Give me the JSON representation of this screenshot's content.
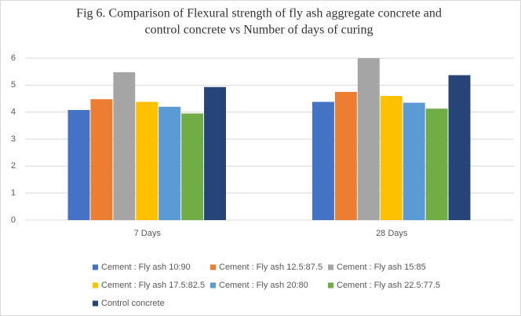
{
  "chart_data": {
    "type": "bar",
    "title": [
      "Fig 6. Comparison of Flexural strength of fly ash aggregate concrete and",
      "control concrete vs Number of days of curing"
    ],
    "categories": [
      "7 Days",
      "28 Days"
    ],
    "series": [
      {
        "name": "Cement : Fly ash 10:90",
        "color": "#4472c4",
        "values": [
          4.08,
          4.38
        ]
      },
      {
        "name": "Cement : Fly ash 12.5:87.5",
        "color": "#ed7d31",
        "values": [
          4.48,
          4.75
        ]
      },
      {
        "name": "Cement : Fly ash 15:85",
        "color": "#a5a5a5",
        "values": [
          5.48,
          6.0
        ]
      },
      {
        "name": "Cement : Fly ash 17.5:82.5",
        "color": "#ffc000",
        "values": [
          4.38,
          4.6
        ]
      },
      {
        "name": "Cement : Fly ash 20:80",
        "color": "#5b9bd5",
        "values": [
          4.2,
          4.35
        ]
      },
      {
        "name": "Cement : Fly ash 22.5:77.5",
        "color": "#70ad47",
        "values": [
          3.95,
          4.13
        ]
      },
      {
        "name": "Control concrete",
        "color": "#264478",
        "values": [
          4.93,
          5.37
        ]
      }
    ],
    "ylim": [
      0,
      6
    ],
    "yticks": [
      0,
      1,
      2,
      3,
      4,
      5,
      6
    ],
    "grid": true,
    "legend": "bottom"
  }
}
